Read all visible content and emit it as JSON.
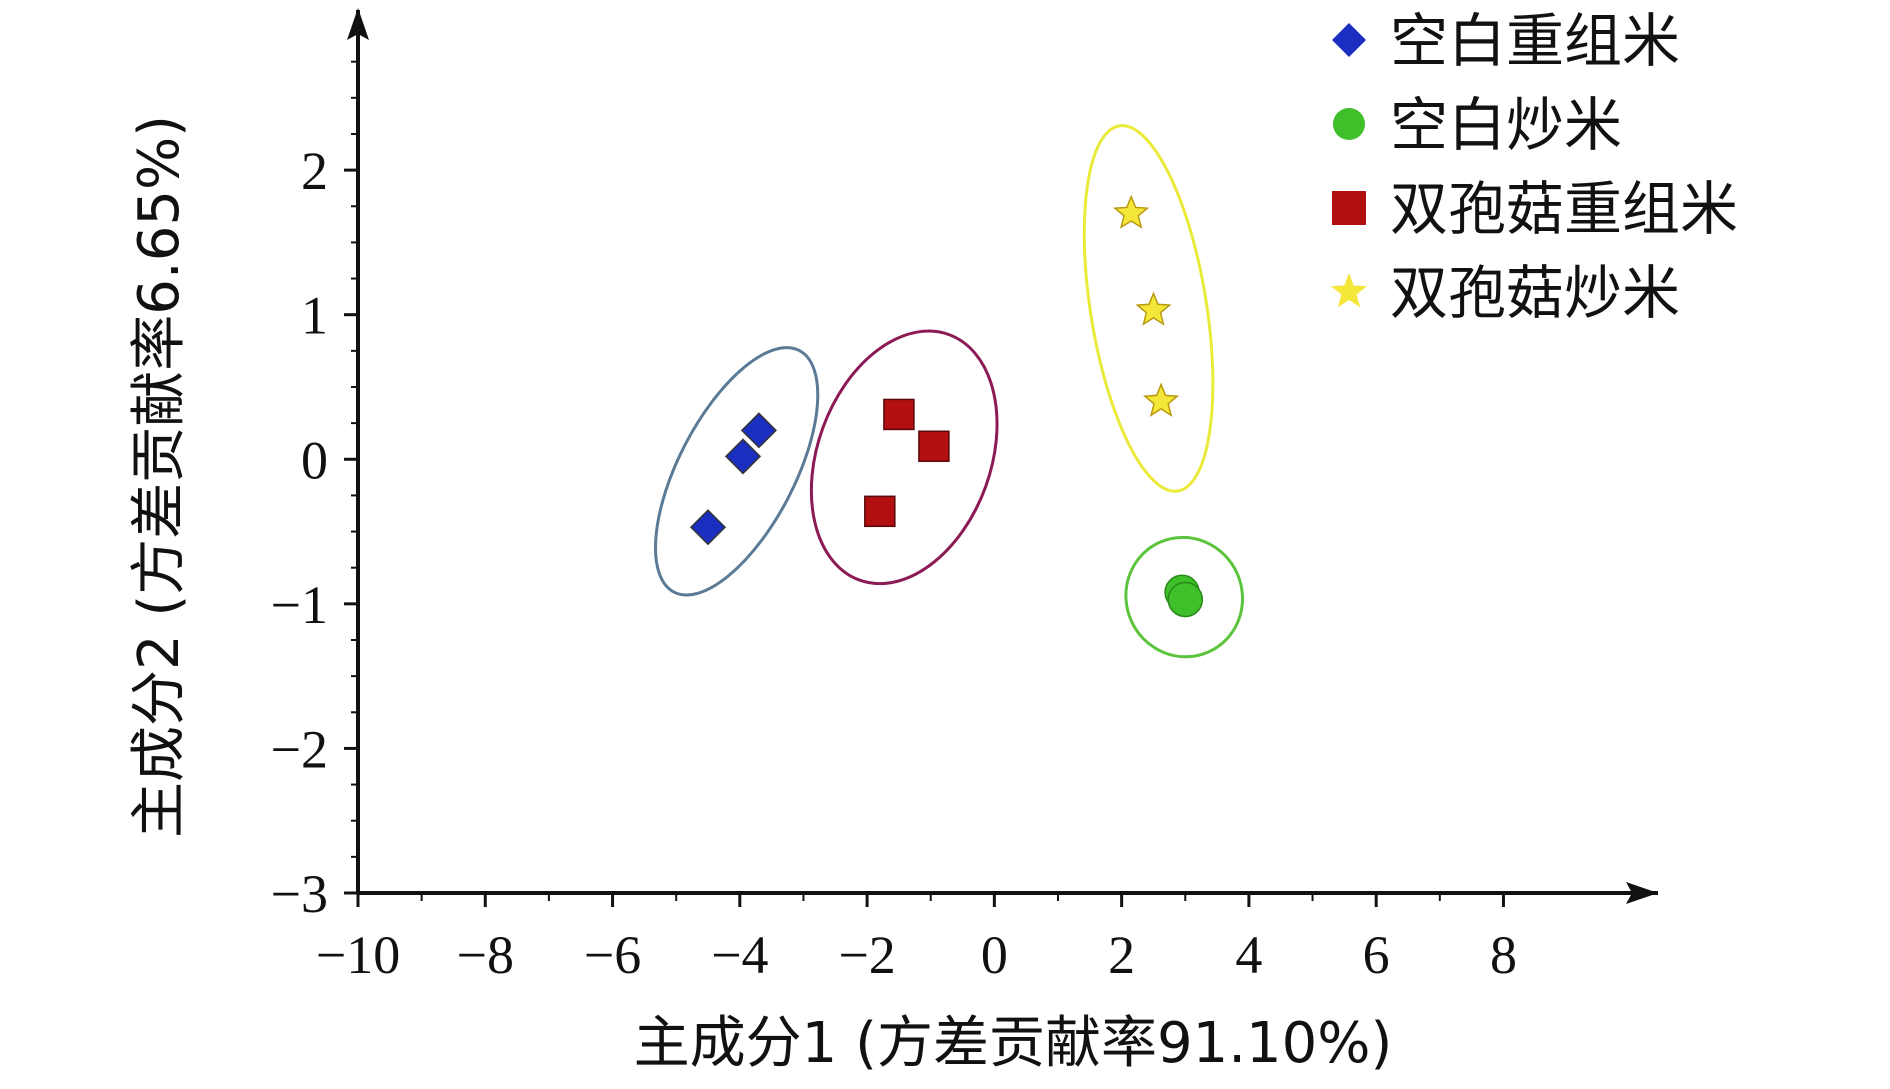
{
  "chart_data": {
    "type": "scatter",
    "xlabel": "主成分1 (方差贡献率91.10%)",
    "ylabel": "主成分2 (方差贡献率6.65%)",
    "xlim": [
      -10,
      9.8
    ],
    "ylim": [
      -3,
      2.9
    ],
    "xticks": [
      -10,
      -8,
      -6,
      -4,
      -2,
      0,
      2,
      4,
      6,
      8
    ],
    "yticks": [
      -3,
      -2,
      -1,
      0,
      1,
      2
    ],
    "xtick_labels": [
      "−10",
      "−8",
      "−6",
      "−4",
      "−2",
      "0",
      "2",
      "4",
      "6",
      "8"
    ],
    "ytick_labels": [
      "−3",
      "−2",
      "−1",
      "0",
      "1",
      "2"
    ],
    "grid": false,
    "legend_position": "top-right",
    "series": [
      {
        "name": "空白重组米",
        "marker": "diamond",
        "color": "#1a2fbf",
        "ellipse_color": "#5a7a96",
        "points": [
          [
            -4.5,
            -0.47
          ],
          [
            -3.95,
            0.02
          ],
          [
            -3.7,
            0.2
          ]
        ]
      },
      {
        "name": "空白炒米",
        "marker": "circle",
        "color": "#3fbf2a",
        "ellipse_color": "#5cc43c",
        "points": [
          [
            2.95,
            -0.92
          ],
          [
            3.0,
            -0.97
          ],
          [
            3.0,
            -0.97
          ]
        ]
      },
      {
        "name": "双孢菇重组米",
        "marker": "square",
        "color": "#b21010",
        "ellipse_color": "#8c1a55",
        "points": [
          [
            -1.5,
            0.31
          ],
          [
            -0.95,
            0.09
          ],
          [
            -1.8,
            -0.36
          ]
        ]
      },
      {
        "name": "双孢菇炒米",
        "marker": "star",
        "color": "#f5e63a",
        "ellipse_color": "#eaea3a",
        "points": [
          [
            2.15,
            1.7
          ],
          [
            2.5,
            1.03
          ],
          [
            2.62,
            0.4
          ]
        ]
      }
    ]
  }
}
